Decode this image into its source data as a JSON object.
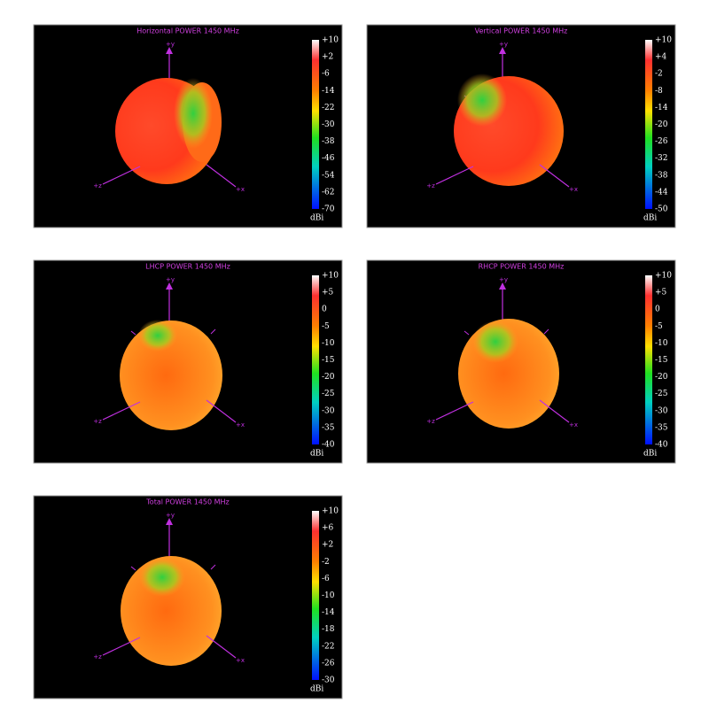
{
  "panels": [
    {
      "title": "Horizontal POWER 1450  MHz",
      "scale": [
        "+10",
        "+2",
        "-6",
        "-14",
        "-22",
        "-30",
        "-38",
        "-46",
        "-54",
        "-62",
        "-70"
      ],
      "unit": "dBi",
      "axes": [
        "+y",
        "+z",
        "+x"
      ]
    },
    {
      "title": "Vertical POWER 1450  MHz",
      "scale": [
        "+10",
        "+4",
        "-2",
        "-8",
        "-14",
        "-20",
        "-26",
        "-32",
        "-38",
        "-44",
        "-50"
      ],
      "unit": "dBi",
      "axes": [
        "+y",
        "+z",
        "+x"
      ]
    },
    {
      "title": "LHCP POWER 1450  MHz",
      "scale": [
        "+10",
        "+5",
        "0",
        "-5",
        "-10",
        "-15",
        "-20",
        "-25",
        "-30",
        "-35",
        "-40"
      ],
      "unit": "dBi",
      "axes": [
        "+y",
        "+z",
        "+x"
      ]
    },
    {
      "title": "RHCP POWER 1450  MHz",
      "scale": [
        "+10",
        "+5",
        "0",
        "-5",
        "-10",
        "-15",
        "-20",
        "-25",
        "-30",
        "-35",
        "-40"
      ],
      "unit": "dBi",
      "axes": [
        "+y",
        "+z",
        "+x"
      ]
    },
    {
      "title": "Total POWER 1450  MHz",
      "scale": [
        "+10",
        "+6",
        "+2",
        "-2",
        "-6",
        "-10",
        "-14",
        "-18",
        "-22",
        "-26",
        "-30"
      ],
      "unit": "dBi",
      "axes": [
        "+y",
        "+z",
        "+x"
      ]
    }
  ]
}
